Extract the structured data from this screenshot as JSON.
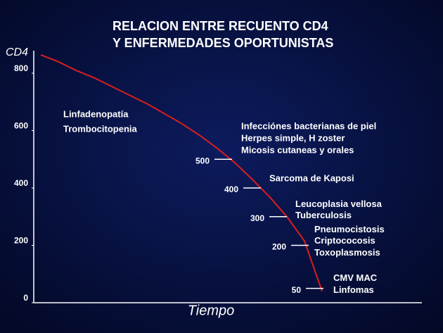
{
  "chart_data": {
    "type": "line",
    "title": [
      "RELACION ENTRE RECUENTO CD4",
      "Y ENFERMEDADES OPORTUNISTAS"
    ],
    "ylabel": "CD4",
    "xlabel": "Tiempo",
    "categories": [
      null,
      null,
      null,
      null,
      null,
      null,
      null,
      null,
      null,
      null,
      null,
      null,
      null,
      null,
      null,
      null,
      null
    ],
    "series": [
      {
        "color": "#d81e1e",
        "values": [
          864,
          840,
          810,
          785,
          755,
          725,
          695,
          660,
          625,
          585,
          540,
          490,
          432,
          370,
          300,
          215,
          40
        ]
      }
    ],
    "ylim": [
      0,
      880
    ],
    "yticks": [
      0,
      200,
      400,
      600,
      800
    ],
    "note": [
      "Linfadenopatía",
      "Trombocitopenia"
    ],
    "annotations": [
      {
        "value": 500,
        "lines": [
          "Infecciónes bacterianas de piel",
          "Herpes simple, H zoster",
          "Micosis cutaneas y orales"
        ]
      },
      {
        "value": 400,
        "lines": [
          "Sarcoma de Kaposi"
        ]
      },
      {
        "value": 300,
        "lines": [
          "Leucoplasia vellosa",
          "Tuberculosis"
        ]
      },
      {
        "value": 200,
        "lines": [
          "Pneumocistosis",
          "Criptococosis",
          "Toxoplasmosis"
        ]
      },
      {
        "value": 50,
        "lines": [
          "CMV MAC",
          "Linfomas"
        ]
      }
    ]
  }
}
